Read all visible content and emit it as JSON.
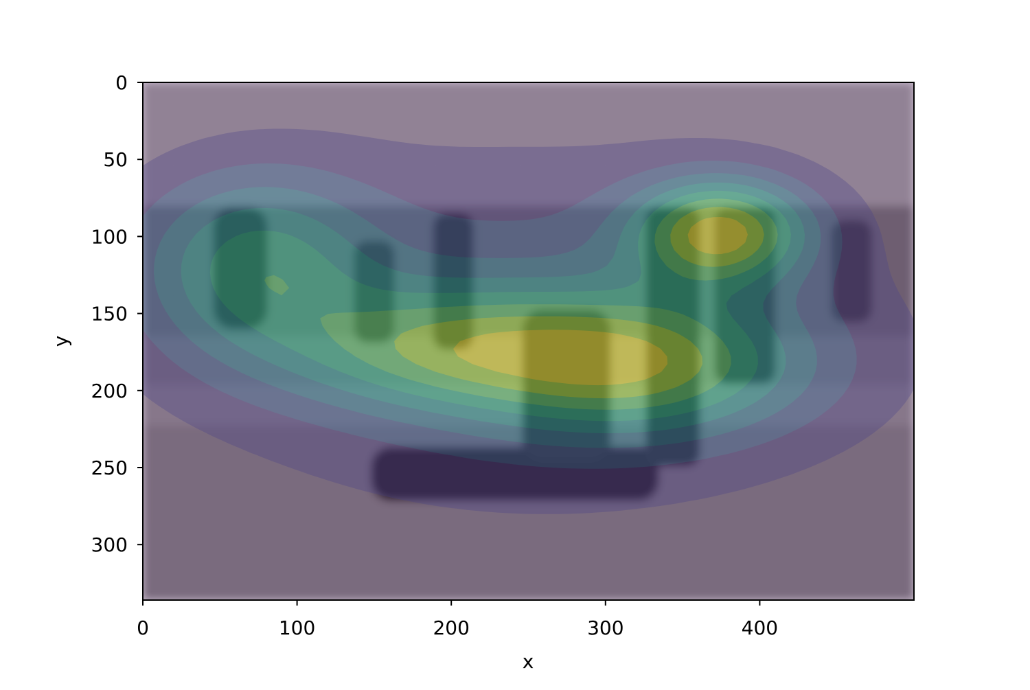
{
  "chart_data": {
    "type": "heatmap",
    "subtype": "filled-contour density overlay on a grayscale photo",
    "title": "",
    "xlabel": "x",
    "ylabel": "y",
    "xlim": [
      0,
      500
    ],
    "ylim": [
      336,
      0
    ],
    "y_axis_inverted": true,
    "x_ticks": [
      0,
      100,
      200,
      300,
      400
    ],
    "y_ticks": [
      0,
      50,
      100,
      150,
      200,
      250,
      300
    ],
    "grid": false,
    "legend": "none",
    "colormap": "viridis",
    "overlay_alpha": 0.45,
    "density_peaks": [
      {
        "x": 375,
        "y": 97,
        "level": 1.0
      },
      {
        "x": 322,
        "y": 183,
        "level": 0.78
      },
      {
        "x": 72,
        "y": 118,
        "level": 0.62
      },
      {
        "x": 190,
        "y": 172,
        "level": 0.55
      }
    ],
    "levels": [
      {
        "level": 0,
        "color": "#440154"
      },
      {
        "level": 1,
        "color": "#472d7b"
      },
      {
        "level": 2,
        "color": "#3b528b"
      },
      {
        "level": 3,
        "color": "#2c728e"
      },
      {
        "level": 4,
        "color": "#21918c"
      },
      {
        "level": 5,
        "color": "#28ae80"
      },
      {
        "level": 6,
        "color": "#5ec962"
      },
      {
        "level": 7,
        "color": "#addc30"
      },
      {
        "level": 8,
        "color": "#fde725"
      }
    ]
  }
}
